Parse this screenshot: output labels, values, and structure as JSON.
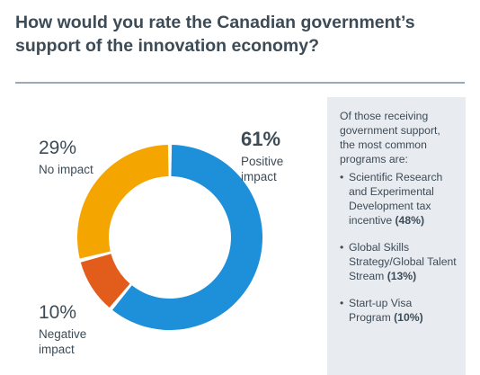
{
  "title": "How would you rate the Canadian government’s support of the innovation economy?",
  "chart_data": {
    "type": "pie",
    "variant": "donut",
    "slices": [
      {
        "label": "Positive impact",
        "value": 61,
        "display": "61%",
        "color": "#1e8fd9"
      },
      {
        "label": "Negative impact",
        "value": 10,
        "display": "10%",
        "color": "#e25d1c"
      },
      {
        "label": "No impact",
        "value": 29,
        "display": "29%",
        "color": "#f5a500"
      }
    ]
  },
  "labels": {
    "positive": {
      "pct": "61%",
      "line1": "Positive",
      "line2": "impact"
    },
    "none": {
      "pct": "29%",
      "line1": "No impact"
    },
    "negative": {
      "pct": "10%",
      "line1": "Negative",
      "line2": "impact"
    }
  },
  "sidebar": {
    "intro": "Of those receiving government support, the most common programs are:",
    "items": [
      {
        "text": "Scientific Research and Experimental Development tax incentive",
        "pct": "(48%)"
      },
      {
        "text": "Global Skills Strategy/Global Talent Stream",
        "pct": "(13%)"
      },
      {
        "text": "Start-up Visa Program",
        "pct": "(10%)"
      }
    ]
  }
}
